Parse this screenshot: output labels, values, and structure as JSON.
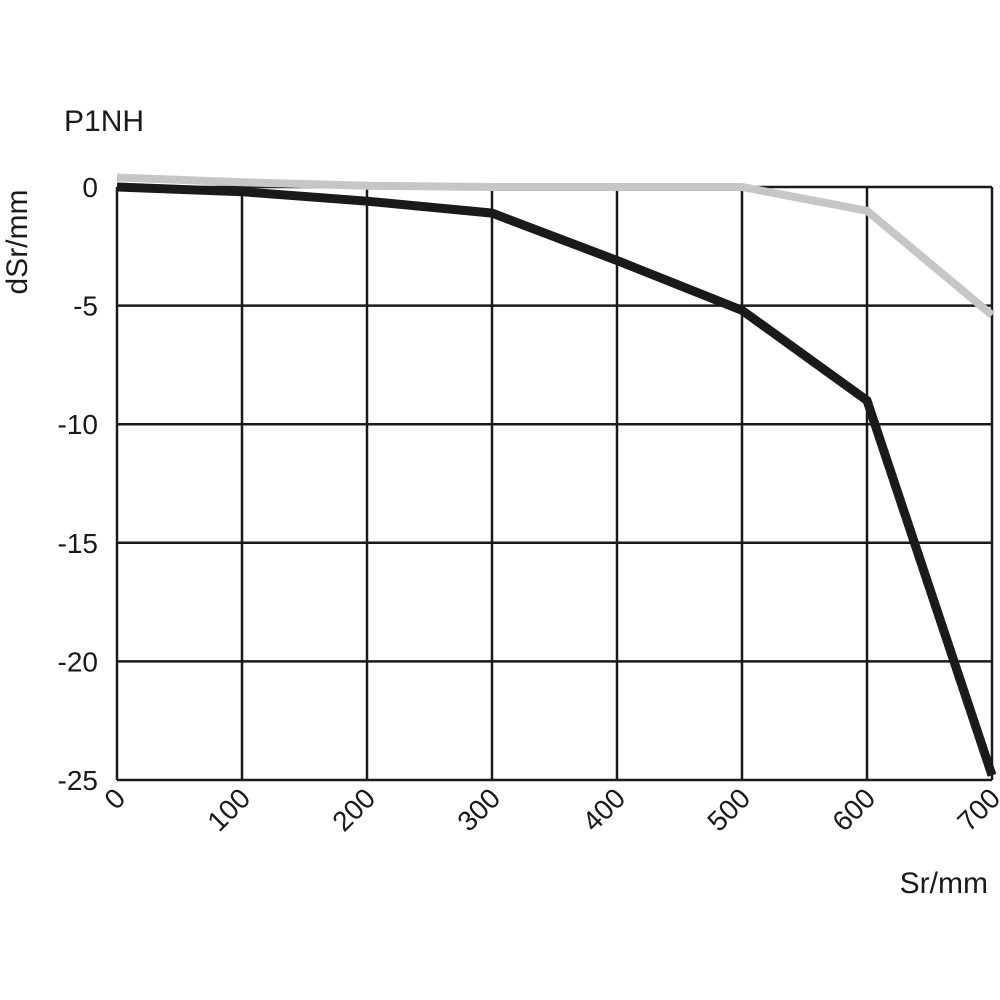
{
  "chart_data": {
    "type": "line",
    "title": "P1NH",
    "xlabel": "Sr/mm",
    "ylabel": "dSr/mm",
    "xlim": [
      0,
      700
    ],
    "ylim": [
      -25,
      0
    ],
    "xticks": [
      0,
      100,
      200,
      300,
      400,
      500,
      600,
      700
    ],
    "yticks": [
      0,
      -5,
      -10,
      -15,
      -20,
      -25
    ],
    "xtick_labels": [
      "0",
      "100",
      "200",
      "300",
      "400",
      "500",
      "600",
      "700"
    ],
    "ytick_labels": [
      "0",
      "-5",
      "-10",
      "-15",
      "-20",
      "-25"
    ],
    "grid": true,
    "series": [
      {
        "color": "#1a1a1a",
        "x": [
          0,
          100,
          200,
          300,
          400,
          500,
          600,
          700
        ],
        "y": [
          0,
          -0.2,
          -0.6,
          -1.1,
          -3.1,
          -5.2,
          -9.0,
          -24.8
        ]
      },
      {
        "color": "#c6c6c6",
        "x": [
          0,
          100,
          200,
          300,
          400,
          500,
          600,
          700
        ],
        "y": [
          0.4,
          0.2,
          0.05,
          0,
          0,
          0,
          -1.0,
          -5.4
        ]
      }
    ]
  }
}
